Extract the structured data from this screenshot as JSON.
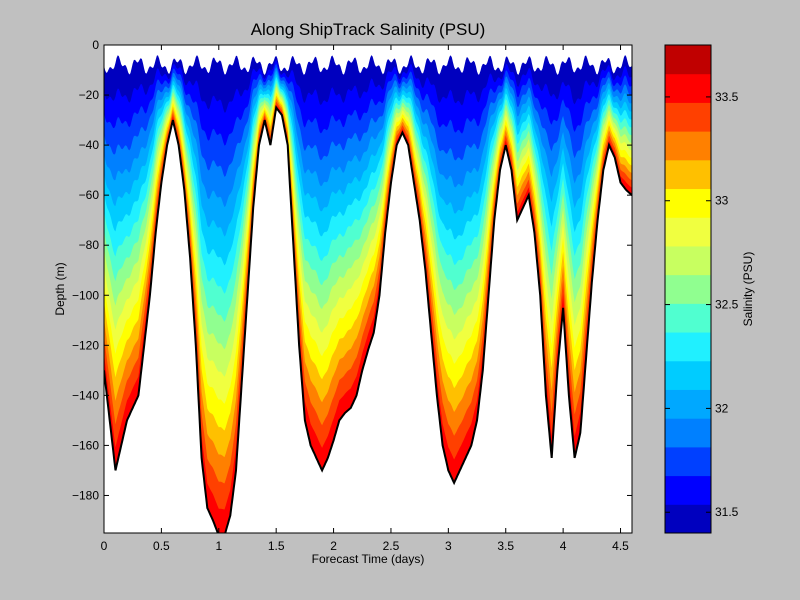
{
  "chart_data": {
    "type": "heatmap",
    "title": "Along ShipTrack Salinity (PSU)",
    "xlabel": "Forecast Time (days)",
    "ylabel": "Depth (m)",
    "xlim": [
      0,
      4.6
    ],
    "ylim": [
      -195,
      0
    ],
    "xticks": [
      0,
      0.5,
      1,
      1.5,
      2,
      2.5,
      3,
      3.5,
      4,
      4.5
    ],
    "xtick_labels": [
      "0",
      "0.5",
      "1",
      "1.5",
      "2",
      "2.5",
      "3",
      "3.5",
      "4",
      "4.5"
    ],
    "yticks": [
      0,
      -20,
      -40,
      -60,
      -80,
      -100,
      -120,
      -140,
      -160,
      -180
    ],
    "ytick_labels": [
      "0",
      "−20",
      "−40",
      "−60",
      "−80",
      "−100",
      "−120",
      "−140",
      "−160",
      "−180"
    ],
    "colorbar": {
      "label": "Salinity (PSU)",
      "range": [
        31.4,
        33.75
      ],
      "levels": 16,
      "ticks": [
        31.5,
        32,
        32.5,
        33,
        33.5
      ],
      "tick_labels": [
        "31.5",
        "32",
        "32.5",
        "33",
        "33.5"
      ],
      "colors": [
        "#0000bf",
        "#0000ff",
        "#0040ff",
        "#0080ff",
        "#00a8ff",
        "#00ccff",
        "#20f0ff",
        "#50ffd0",
        "#90ff90",
        "#c8ff60",
        "#f0ff40",
        "#ffff00",
        "#ffc000",
        "#ff8000",
        "#ff4000",
        "#ff0000",
        "#c00000"
      ]
    },
    "bottom_depth": {
      "x": [
        0,
        0.05,
        0.1,
        0.15,
        0.2,
        0.25,
        0.3,
        0.35,
        0.4,
        0.45,
        0.5,
        0.55,
        0.6,
        0.65,
        0.7,
        0.75,
        0.8,
        0.85,
        0.9,
        0.95,
        1.0,
        1.05,
        1.1,
        1.15,
        1.2,
        1.25,
        1.3,
        1.35,
        1.4,
        1.45,
        1.5,
        1.55,
        1.6,
        1.65,
        1.7,
        1.75,
        1.8,
        1.85,
        1.9,
        1.95,
        2.0,
        2.05,
        2.1,
        2.15,
        2.2,
        2.25,
        2.3,
        2.35,
        2.4,
        2.45,
        2.5,
        2.55,
        2.6,
        2.65,
        2.7,
        2.75,
        2.8,
        2.85,
        2.9,
        2.95,
        3.0,
        3.05,
        3.1,
        3.15,
        3.2,
        3.25,
        3.3,
        3.35,
        3.4,
        3.45,
        3.5,
        3.55,
        3.6,
        3.65,
        3.7,
        3.75,
        3.8,
        3.85,
        3.9,
        3.95,
        4.0,
        4.05,
        4.1,
        4.15,
        4.2,
        4.25,
        4.3,
        4.35,
        4.4,
        4.45,
        4.5,
        4.55,
        4.6
      ],
      "y": [
        -130,
        -150,
        -170,
        -160,
        -150,
        -145,
        -140,
        -120,
        -100,
        -75,
        -55,
        -40,
        -30,
        -40,
        -58,
        -85,
        -120,
        -165,
        -185,
        -190,
        -196,
        -196,
        -188,
        -170,
        -135,
        -100,
        -65,
        -40,
        -30,
        -40,
        -25,
        -28,
        -40,
        -80,
        -120,
        -150,
        -160,
        -165,
        -170,
        -165,
        -158,
        -150,
        -147,
        -145,
        -140,
        -130,
        -122,
        -115,
        -100,
        -75,
        -55,
        -40,
        -35,
        -40,
        -55,
        -70,
        -90,
        -115,
        -140,
        -160,
        -170,
        -175,
        -170,
        -165,
        -160,
        -150,
        -130,
        -100,
        -70,
        -50,
        -40,
        -50,
        -70,
        -65,
        -60,
        -75,
        -100,
        -140,
        -165,
        -130,
        -105,
        -140,
        -165,
        -155,
        -125,
        -95,
        -70,
        -50,
        -40,
        -45,
        -55,
        -58,
        -60
      ]
    }
  }
}
